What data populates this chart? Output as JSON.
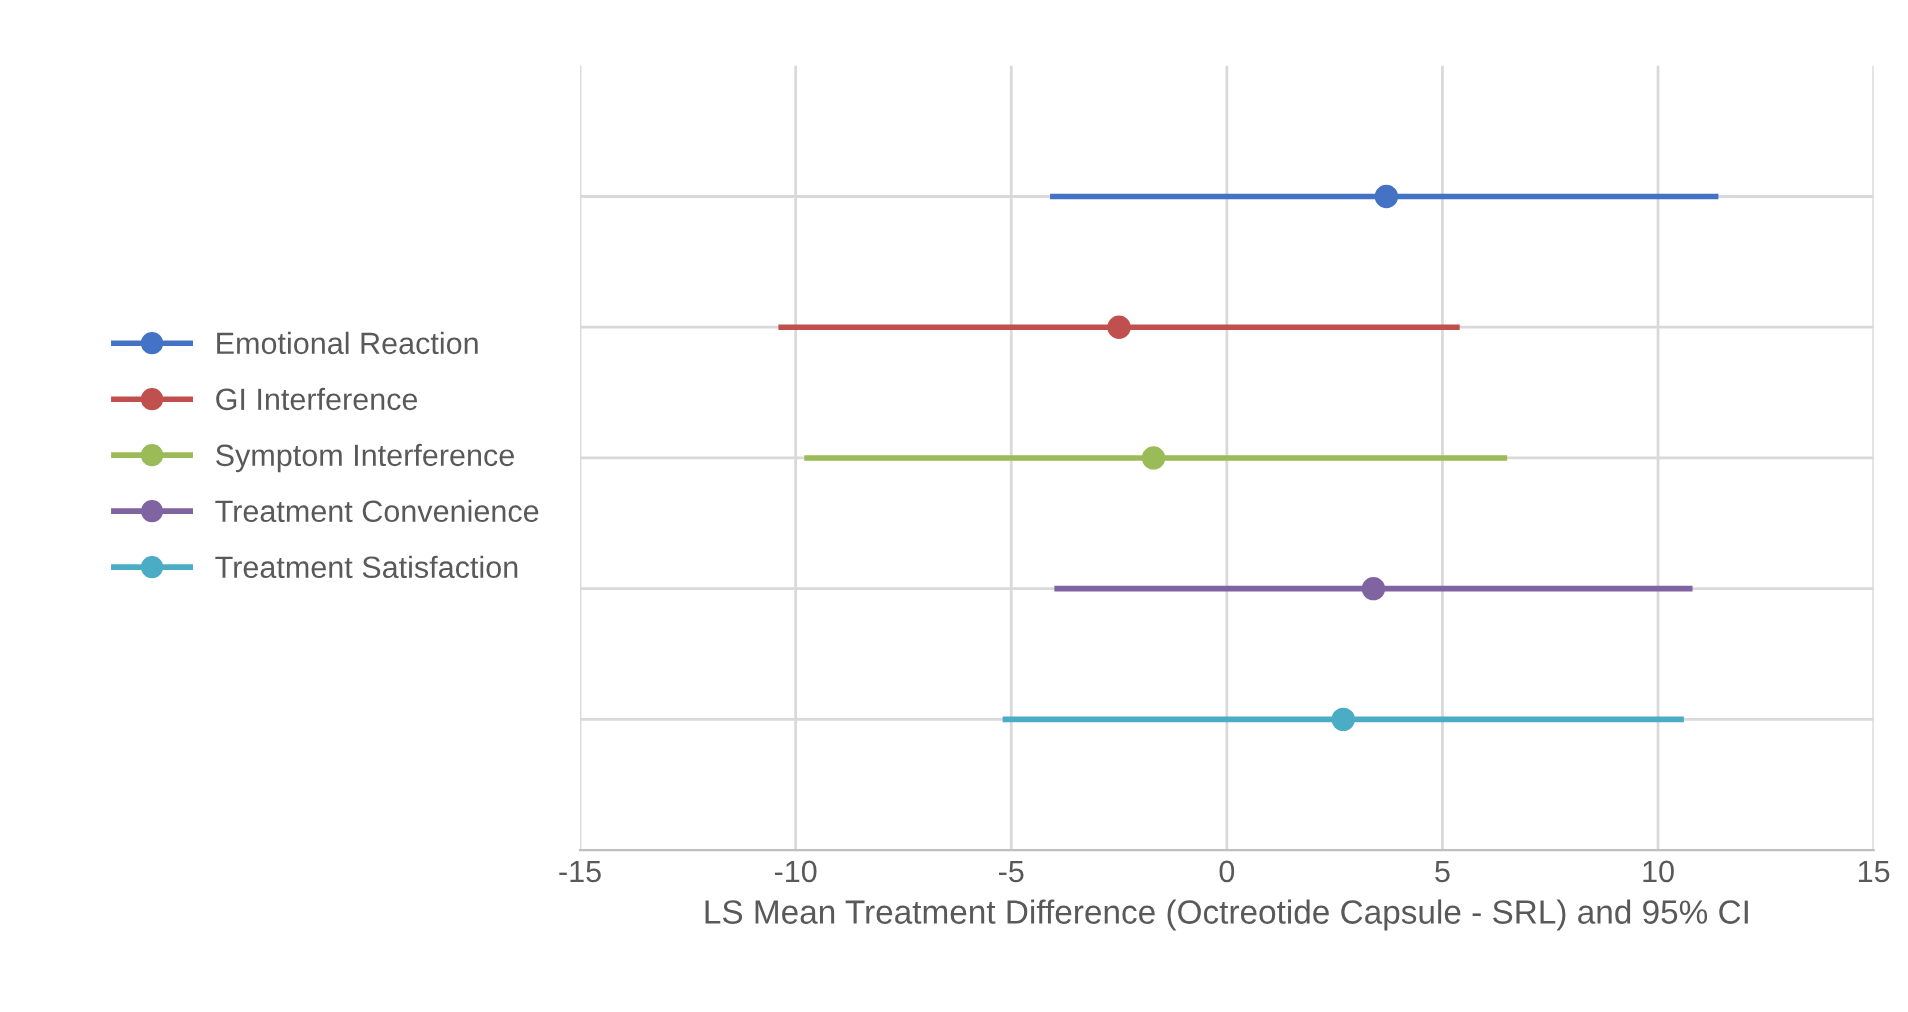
{
  "chart_data": {
    "type": "scatter",
    "orientation": "horizontal",
    "xlabel": "LS Mean Treatment Difference (Octreotide Capsule - SRL) and 95% CI",
    "categories": [
      null,
      null,
      null,
      null,
      null
    ],
    "xlim": [
      -15,
      15
    ],
    "xticks": [
      -15,
      -10,
      -5,
      0,
      5,
      10,
      15
    ],
    "series": [
      {
        "name": "Emotional Reaction",
        "color": "#4472c4",
        "values": [
          3.7,
          null,
          null,
          null,
          null
        ],
        "errors": [
          [
            -4.1,
            11.4
          ],
          null,
          null,
          null,
          null
        ]
      },
      {
        "name": "GI Interference",
        "color": "#c0504d",
        "values": [
          null,
          -2.5,
          null,
          null,
          null
        ],
        "errors": [
          null,
          [
            -10.4,
            5.4
          ],
          null,
          null,
          null
        ]
      },
      {
        "name": "Symptom Interference",
        "color": "#9bbb59",
        "values": [
          null,
          null,
          -1.7,
          null,
          null
        ],
        "errors": [
          null,
          null,
          [
            -9.8,
            6.5
          ],
          null,
          null
        ]
      },
      {
        "name": "Treatment Convenience",
        "color": "#8064a2",
        "values": [
          null,
          null,
          null,
          3.4,
          null
        ],
        "errors": [
          null,
          null,
          null,
          [
            -4.0,
            10.8
          ],
          null
        ]
      },
      {
        "name": "Treatment Satisfaction",
        "color": "#4bacc6",
        "values": [
          null,
          null,
          null,
          null,
          2.7
        ],
        "errors": [
          null,
          null,
          null,
          null,
          [
            -5.2,
            10.6
          ]
        ]
      }
    ],
    "marker": "circle",
    "grid": true,
    "legend": "left",
    "tick_labels": "x"
  }
}
